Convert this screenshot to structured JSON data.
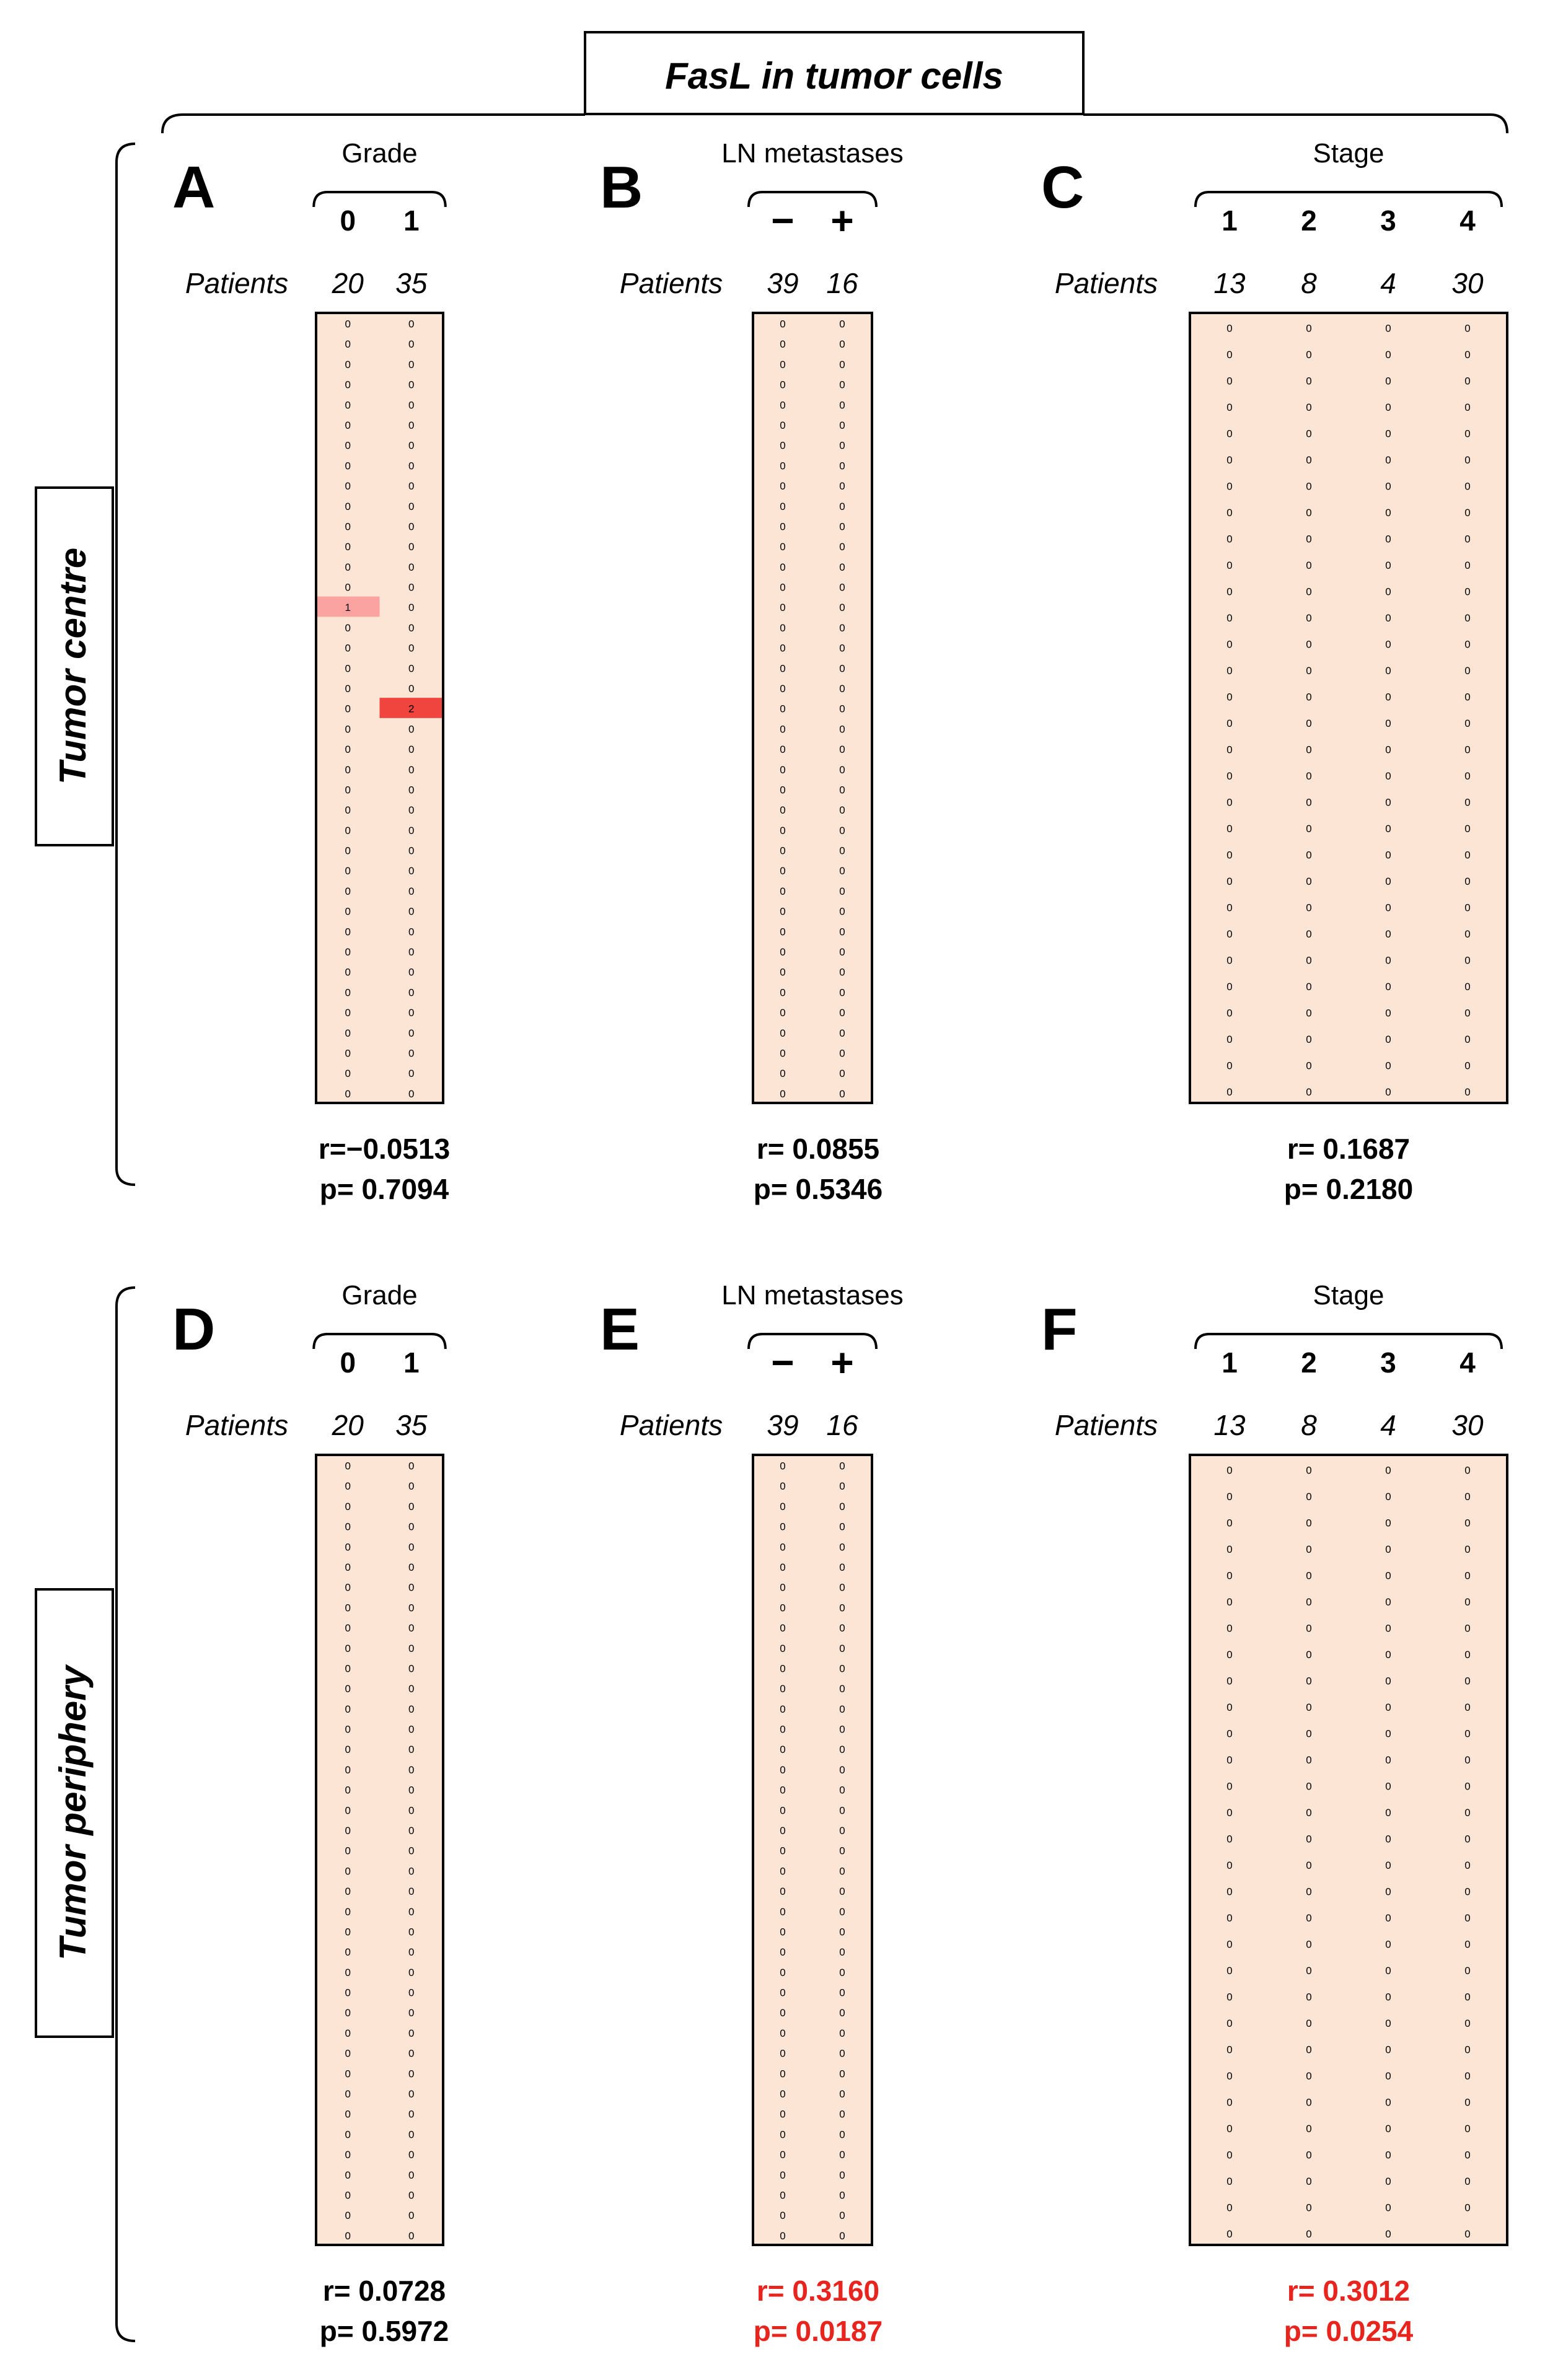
{
  "chart_data": {
    "type": "heatmap",
    "title": "FasL in tumor cells",
    "patients_label": "Patients",
    "rows": [
      "Tumor centre",
      "Tumor periphery"
    ],
    "colors": {
      "score_0": "#fde5d6",
      "score_1": "#fba3a0",
      "score_2": "#f0453e",
      "highlight_stat": "#e8241e",
      "normal_stat": "#000000"
    },
    "panels": [
      {
        "letter": "A",
        "row": 0,
        "col": 0,
        "variable": "Grade",
        "categories": [
          "0",
          "1"
        ],
        "counts": [
          "20",
          "35"
        ],
        "scores": [
          [
            0,
            0,
            0,
            0,
            0,
            0,
            0,
            0,
            0,
            0,
            0,
            0,
            0,
            0,
            1,
            0,
            0,
            0,
            0,
            0,
            0,
            0,
            0,
            0,
            0,
            0,
            0,
            0,
            0,
            0,
            0,
            0,
            0,
            0,
            0,
            0,
            0,
            0,
            0
          ],
          [
            0,
            0,
            0,
            0,
            0,
            0,
            0,
            0,
            0,
            0,
            0,
            0,
            0,
            0,
            0,
            0,
            0,
            0,
            0,
            2,
            0,
            0,
            0,
            0,
            0,
            0,
            0,
            0,
            0,
            0,
            0,
            0,
            0,
            0,
            0,
            0,
            0,
            0,
            0
          ]
        ],
        "r_text": "r=−0.0513",
        "p_text": "p=  0.7094",
        "significant": false
      },
      {
        "letter": "B",
        "row": 0,
        "col": 1,
        "variable": "LN metastases",
        "categories": [
          "−",
          "+"
        ],
        "counts": [
          "39",
          "16"
        ],
        "scores": [
          [
            0,
            0,
            0,
            0,
            0,
            0,
            0,
            0,
            0,
            0,
            0,
            0,
            0,
            0,
            0,
            0,
            0,
            0,
            0,
            0,
            0,
            0,
            0,
            0,
            0,
            0,
            0,
            0,
            0,
            0,
            0,
            0,
            0,
            0,
            0,
            0,
            0,
            0,
            0
          ],
          [
            0,
            0,
            0,
            0,
            0,
            0,
            0,
            0,
            0,
            0,
            0,
            0,
            0,
            0,
            0,
            0,
            0,
            0,
            0,
            0,
            0,
            0,
            0,
            0,
            0,
            0,
            0,
            0,
            0,
            0,
            0,
            0,
            0,
            0,
            0,
            0,
            0,
            0,
            0
          ]
        ],
        "r_text": "r=  0.0855",
        "p_text": "p= 0.5346",
        "significant": false
      },
      {
        "letter": "C",
        "row": 0,
        "col": 2,
        "variable": "Stage",
        "categories": [
          "1",
          "2",
          "3",
          "4"
        ],
        "counts": [
          "13",
          "8",
          "4",
          "30"
        ],
        "scores": [
          [
            0,
            0,
            0,
            0,
            0,
            0,
            0,
            0,
            0,
            0,
            0,
            0,
            0,
            0,
            0,
            0,
            0,
            0,
            0,
            0,
            0,
            0,
            0,
            0,
            0,
            0,
            0,
            0,
            0,
            0
          ],
          [
            0,
            0,
            0,
            0,
            0,
            0,
            0,
            0,
            0,
            0,
            0,
            0,
            0,
            0,
            0,
            0,
            0,
            0,
            0,
            0,
            0,
            0,
            0,
            0,
            0,
            0,
            0,
            0,
            0,
            0
          ],
          [
            0,
            0,
            0,
            0,
            0,
            0,
            0,
            0,
            0,
            0,
            0,
            0,
            0,
            0,
            0,
            0,
            0,
            0,
            0,
            0,
            0,
            0,
            0,
            0,
            0,
            0,
            0,
            0,
            0,
            0
          ],
          [
            0,
            0,
            0,
            0,
            0,
            0,
            0,
            0,
            0,
            0,
            0,
            0,
            0,
            0,
            0,
            0,
            0,
            0,
            0,
            0,
            0,
            0,
            0,
            0,
            0,
            0,
            0,
            0,
            0,
            0
          ]
        ],
        "r_text": "r=  0.1687",
        "p_text": "p= 0.2180",
        "significant": false
      },
      {
        "letter": "D",
        "row": 1,
        "col": 0,
        "variable": "Grade",
        "categories": [
          "0",
          "1"
        ],
        "counts": [
          "20",
          "35"
        ],
        "scores": [
          [
            0,
            0,
            0,
            0,
            0,
            0,
            0,
            0,
            0,
            0,
            0,
            0,
            0,
            0,
            0,
            0,
            0,
            0,
            0,
            0,
            0,
            0,
            0,
            0,
            0,
            0,
            0,
            0,
            0,
            0,
            0,
            0,
            0,
            0,
            0,
            0,
            0,
            0,
            0
          ],
          [
            0,
            0,
            0,
            0,
            0,
            0,
            0,
            0,
            0,
            0,
            0,
            0,
            0,
            0,
            0,
            0,
            0,
            0,
            0,
            0,
            0,
            0,
            0,
            0,
            0,
            0,
            0,
            0,
            0,
            0,
            0,
            0,
            0,
            0,
            0,
            0,
            0,
            0,
            0
          ]
        ],
        "r_text": "r=  0.0728",
        "p_text": "p= 0.5972",
        "significant": false
      },
      {
        "letter": "E",
        "row": 1,
        "col": 1,
        "variable": "LN metastases",
        "categories": [
          "−",
          "+"
        ],
        "counts": [
          "39",
          "16"
        ],
        "scores": [
          [
            0,
            0,
            0,
            0,
            0,
            0,
            0,
            0,
            0,
            0,
            0,
            0,
            0,
            0,
            0,
            0,
            0,
            0,
            0,
            0,
            0,
            0,
            0,
            0,
            0,
            0,
            0,
            0,
            0,
            0,
            0,
            0,
            0,
            0,
            0,
            0,
            0,
            0,
            0
          ],
          [
            0,
            0,
            0,
            0,
            0,
            0,
            0,
            0,
            0,
            0,
            0,
            0,
            0,
            0,
            0,
            0,
            0,
            0,
            0,
            0,
            0,
            0,
            0,
            0,
            0,
            0,
            0,
            0,
            0,
            0,
            0,
            0,
            0,
            0,
            0,
            0,
            0,
            0,
            0
          ]
        ],
        "r_text": "r=  0.3160",
        "p_text": "p= 0.0187",
        "significant": true
      },
      {
        "letter": "F",
        "row": 1,
        "col": 2,
        "variable": "Stage",
        "categories": [
          "1",
          "2",
          "3",
          "4"
        ],
        "counts": [
          "13",
          "8",
          "4",
          "30"
        ],
        "scores": [
          [
            0,
            0,
            0,
            0,
            0,
            0,
            0,
            0,
            0,
            0,
            0,
            0,
            0,
            0,
            0,
            0,
            0,
            0,
            0,
            0,
            0,
            0,
            0,
            0,
            0,
            0,
            0,
            0,
            0,
            0
          ],
          [
            0,
            0,
            0,
            0,
            0,
            0,
            0,
            0,
            0,
            0,
            0,
            0,
            0,
            0,
            0,
            0,
            0,
            0,
            0,
            0,
            0,
            0,
            0,
            0,
            0,
            0,
            0,
            0,
            0,
            0
          ],
          [
            0,
            0,
            0,
            0,
            0,
            0,
            0,
            0,
            0,
            0,
            0,
            0,
            0,
            0,
            0,
            0,
            0,
            0,
            0,
            0,
            0,
            0,
            0,
            0,
            0,
            0,
            0,
            0,
            0,
            0
          ],
          [
            0,
            0,
            0,
            0,
            0,
            0,
            0,
            0,
            0,
            0,
            0,
            0,
            0,
            0,
            0,
            0,
            0,
            0,
            0,
            0,
            0,
            0,
            0,
            0,
            0,
            0,
            0,
            0,
            0,
            0
          ]
        ],
        "r_text": "r=  0.3012",
        "p_text": "p= 0.0254",
        "significant": true
      }
    ]
  }
}
